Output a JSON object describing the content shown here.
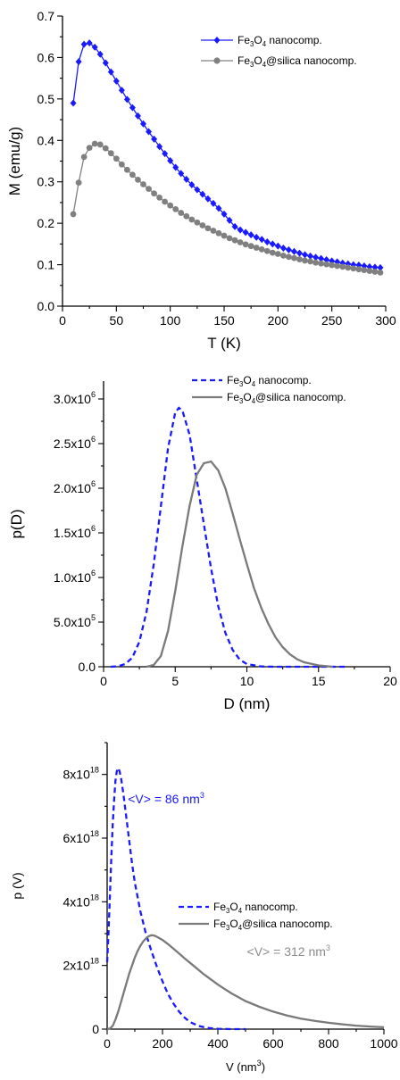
{
  "chart_data": [
    {
      "type": "line",
      "xlabel": "T (K)",
      "ylabel": "M (emu/g)",
      "xlim": [
        0,
        300
      ],
      "ylim": [
        0,
        0.7
      ],
      "xticks": [
        "0",
        "50",
        "100",
        "150",
        "200",
        "250",
        "300"
      ],
      "yticks": [
        "0.0",
        "0.1",
        "0.2",
        "0.3",
        "0.4",
        "0.5",
        "0.6",
        "0.7"
      ],
      "legend_position": "top-right",
      "series": [
        {
          "name": "Fe3O4 nanocomp.",
          "name_parts": {
            "a": "Fe",
            "s1": "3",
            "b": "O",
            "s2": "4",
            "c": " nanocomp."
          },
          "color": "#1a1aff",
          "marker": "diamond",
          "x": [
            10,
            15,
            20,
            25,
            30,
            35,
            40,
            45,
            50,
            55,
            60,
            65,
            70,
            75,
            80,
            85,
            90,
            95,
            100,
            105,
            110,
            115,
            120,
            125,
            130,
            135,
            140,
            145,
            150,
            155,
            160,
            165,
            170,
            175,
            180,
            185,
            190,
            195,
            200,
            205,
            210,
            215,
            220,
            225,
            230,
            235,
            240,
            245,
            250,
            255,
            260,
            265,
            270,
            275,
            280,
            285,
            290,
            295
          ],
          "y": [
            0.49,
            0.59,
            0.632,
            0.635,
            0.625,
            0.608,
            0.587,
            0.565,
            0.543,
            0.521,
            0.499,
            0.479,
            0.459,
            0.44,
            0.421,
            0.403,
            0.385,
            0.368,
            0.351,
            0.335,
            0.32,
            0.306,
            0.293,
            0.281,
            0.27,
            0.259,
            0.248,
            0.236,
            0.222,
            0.207,
            0.192,
            0.184,
            0.178,
            0.172,
            0.166,
            0.161,
            0.155,
            0.15,
            0.145,
            0.14,
            0.136,
            0.132,
            0.128,
            0.124,
            0.121,
            0.118,
            0.115,
            0.112,
            0.109,
            0.107,
            0.104,
            0.102,
            0.1,
            0.099,
            0.097,
            0.095,
            0.094,
            0.093
          ]
        },
        {
          "name": "Fe3O4@silica nanocomp.",
          "name_parts": {
            "a": "Fe",
            "s1": "3",
            "b": "O",
            "s2": "4",
            "c": "@silica nanocomp."
          },
          "color": "#808080",
          "marker": "circle",
          "x": [
            10,
            15,
            20,
            25,
            30,
            35,
            40,
            45,
            50,
            55,
            60,
            65,
            70,
            75,
            80,
            85,
            90,
            95,
            100,
            105,
            110,
            115,
            120,
            125,
            130,
            135,
            140,
            145,
            150,
            155,
            160,
            165,
            170,
            175,
            180,
            185,
            190,
            195,
            200,
            205,
            210,
            215,
            220,
            225,
            230,
            235,
            240,
            245,
            250,
            255,
            260,
            265,
            270,
            275,
            280,
            285,
            290,
            295
          ],
          "y": [
            0.222,
            0.298,
            0.36,
            0.382,
            0.392,
            0.39,
            0.381,
            0.369,
            0.356,
            0.342,
            0.329,
            0.317,
            0.305,
            0.294,
            0.283,
            0.272,
            0.262,
            0.252,
            0.243,
            0.234,
            0.225,
            0.217,
            0.209,
            0.202,
            0.195,
            0.188,
            0.182,
            0.176,
            0.17,
            0.164,
            0.159,
            0.154,
            0.149,
            0.145,
            0.141,
            0.137,
            0.133,
            0.129,
            0.126,
            0.122,
            0.119,
            0.116,
            0.113,
            0.11,
            0.108,
            0.105,
            0.103,
            0.101,
            0.099,
            0.097,
            0.095,
            0.093,
            0.091,
            0.089,
            0.087,
            0.085,
            0.083,
            0.081
          ]
        }
      ]
    },
    {
      "type": "line",
      "xlabel": "D (nm)",
      "ylabel": "p(D)",
      "xlim": [
        0,
        20
      ],
      "ylim": [
        0,
        3200000.0
      ],
      "xticks": [
        "0",
        "5",
        "10",
        "15",
        "20"
      ],
      "yticks": [
        {
          "m": "0.0",
          "e": ""
        },
        {
          "m": "5.0x10",
          "e": "5"
        },
        {
          "m": "1.0x10",
          "e": "6"
        },
        {
          "m": "1.5x10",
          "e": "6"
        },
        {
          "m": "2.0x10",
          "e": "6"
        },
        {
          "m": "2.5x10",
          "e": "6"
        },
        {
          "m": "3.0x10",
          "e": "6"
        }
      ],
      "legend_position": "top-right",
      "series": [
        {
          "name": "Fe3O4 nanocomp.",
          "name_parts": {
            "a": "Fe",
            "s1": "3",
            "b": "O",
            "s2": "4",
            "c": " nanocomp."
          },
          "color": "#1a1aff",
          "style": "dashed",
          "x": [
            0.5,
            1.0,
            1.5,
            2.0,
            2.5,
            3.0,
            3.5,
            4.0,
            4.5,
            5.0,
            5.25,
            5.5,
            6.0,
            6.5,
            7.0,
            7.5,
            8.0,
            8.5,
            9.0,
            9.5,
            10.0,
            11.0,
            12.0,
            13.0,
            14.0,
            15.0,
            16.0,
            17.0
          ],
          "y": [
            0,
            5000,
            30000,
            100000,
            280000,
            620000,
            1150000,
            1800000,
            2450000,
            2850000,
            2900000,
            2870000,
            2600000,
            2100000,
            1600000,
            1100000,
            680000,
            380000,
            190000,
            80000,
            30000,
            3000,
            0,
            0,
            0,
            0,
            0,
            0
          ]
        },
        {
          "name": "Fe3O4@silica nanocomp.",
          "name_parts": {
            "a": "Fe",
            "s1": "3",
            "b": "O",
            "s2": "4",
            "c": "@silica nanocomp."
          },
          "color": "#7a7a7a",
          "style": "solid",
          "x": [
            3.0,
            3.5,
            4.0,
            4.5,
            5.0,
            5.5,
            6.0,
            6.5,
            7.0,
            7.5,
            8.0,
            8.5,
            9.0,
            9.5,
            10.0,
            10.5,
            11.0,
            11.5,
            12.0,
            12.5,
            13.0,
            13.5,
            14.0,
            15.0,
            16.0
          ],
          "y": [
            0,
            20000,
            120000,
            400000,
            850000,
            1350000,
            1800000,
            2150000,
            2280000,
            2300000,
            2200000,
            2000000,
            1720000,
            1430000,
            1150000,
            880000,
            660000,
            480000,
            330000,
            220000,
            140000,
            85000,
            50000,
            15000,
            0
          ]
        }
      ]
    },
    {
      "type": "line",
      "xlabel": {
        "base": "V (nm",
        "exp": "3",
        "close": ")"
      },
      "ylabel": "p (V)",
      "xlim": [
        0,
        1000
      ],
      "ylim": [
        0,
        9e+18
      ],
      "xticks": [
        "0",
        "200",
        "400",
        "600",
        "800",
        "1000"
      ],
      "yticks": [
        {
          "m": "0",
          "e": ""
        },
        {
          "m": "2x10",
          "e": "18"
        },
        {
          "m": "4x10",
          "e": "18"
        },
        {
          "m": "6x10",
          "e": "18"
        },
        {
          "m": "8x10",
          "e": "18"
        }
      ],
      "legend_position": "middle-right",
      "annotations": [
        {
          "text": "<V> = 86 nm",
          "exp": "3",
          "color": "#1a1aff",
          "at": [
            75,
            7.1e+18
          ]
        },
        {
          "text": "<V> = 312 nm",
          "exp": "3",
          "color": "#8c8c8c",
          "at": [
            505,
            2.3e+18
          ]
        }
      ],
      "series": [
        {
          "name": "Fe3O4 nanocomp.",
          "name_parts": {
            "a": "Fe",
            "s1": "3",
            "b": "O",
            "s2": "4",
            "c": " nanocomp."
          },
          "color": "#1a1aff",
          "style": "dashed",
          "x": [
            0,
            5,
            10,
            15,
            20,
            25,
            30,
            35,
            40,
            45,
            50,
            55,
            60,
            70,
            80,
            90,
            100,
            120,
            140,
            160,
            180,
            200,
            220,
            240,
            260,
            280,
            300,
            330,
            360,
            400,
            450,
            500
          ],
          "y": [
            2.1e+18,
            3e+18,
            4.2e+18,
            5.4e+18,
            6.4e+18,
            7.2e+18,
            7.8e+18,
            8.1e+18,
            8.2e+18,
            8.1e+18,
            7.9e+18,
            7.6e+18,
            7.3e+18,
            6.6e+18,
            5.9e+18,
            5.2e+18,
            4.6e+18,
            3.7e+18,
            3e+18,
            2.45e+18,
            1.95e+18,
            1.5e+18,
            1.1e+18,
            8e+17,
            5.5e+17,
            3.6e+17,
            2.2e+17,
            1e+17,
            4e+16,
            1e+16,
            0,
            0
          ]
        },
        {
          "name": "Fe3O4@silica nanocomp.",
          "name_parts": {
            "a": "Fe",
            "s1": "3",
            "b": "O",
            "s2": "4",
            "c": "@silica nanocomp."
          },
          "color": "#7a7a7a",
          "style": "solid",
          "x": [
            0,
            10,
            20,
            30,
            40,
            50,
            60,
            70,
            80,
            90,
            100,
            110,
            120,
            130,
            140,
            150,
            160,
            170,
            180,
            200,
            220,
            250,
            280,
            300,
            350,
            400,
            450,
            500,
            550,
            600,
            650,
            700,
            750,
            800,
            850,
            900,
            950,
            1000
          ],
          "y": [
            0,
            2e+16,
            1e+17,
            3e+17,
            5.5e+17,
            8.5e+17,
            1.15e+18,
            1.45e+18,
            1.75e+18,
            2e+18,
            2.25e+18,
            2.45e+18,
            2.62e+18,
            2.75e+18,
            2.85e+18,
            2.92e+18,
            2.95e+18,
            2.94e+18,
            2.9e+18,
            2.8e+18,
            2.67e+18,
            2.45e+18,
            2.22e+18,
            2.08e+18,
            1.72e+18,
            1.4e+18,
            1.12e+18,
            8.8e+17,
            7e+17,
            5.5e+17,
            4.3e+17,
            3.3e+17,
            2.6e+17,
            2e+17,
            1.5e+17,
            1.1e+17,
            8e+16,
            6e+16
          ]
        }
      ]
    }
  ]
}
